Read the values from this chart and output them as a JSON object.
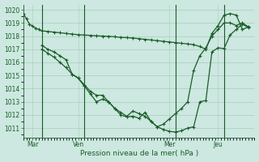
{
  "background_color": "#cce8e0",
  "grid_color": "#aaccbc",
  "line_color": "#1a5c28",
  "title": "Pression niveau de la mer( hPa )",
  "ylim": [
    1010.3,
    1020.4
  ],
  "yticks": [
    1011,
    1012,
    1013,
    1014,
    1015,
    1016,
    1017,
    1018,
    1019,
    1020
  ],
  "xlim": [
    0,
    38
  ],
  "xtick_labels": [
    "Mar",
    "Ven",
    "Mer",
    "Jeu"
  ],
  "xtick_positions": [
    1.5,
    9,
    24,
    32
  ],
  "vline_positions": [
    3,
    10,
    25,
    33
  ],
  "series1_x": [
    0,
    0.5,
    1,
    1.5,
    2,
    2.5,
    3,
    4,
    5,
    6,
    7,
    8,
    9,
    10,
    11,
    12,
    13,
    14,
    15,
    16,
    17,
    18,
    19,
    20,
    21,
    22,
    23,
    24,
    25,
    26,
    27,
    28,
    29,
    30,
    31,
    32,
    33,
    34,
    35,
    36,
    37
  ],
  "series1_y": [
    1019.7,
    1019.3,
    1018.9,
    1018.75,
    1018.6,
    1018.5,
    1018.4,
    1018.35,
    1018.3,
    1018.25,
    1018.2,
    1018.15,
    1018.1,
    1018.08,
    1018.05,
    1018.02,
    1018.0,
    1017.98,
    1017.95,
    1017.9,
    1017.88,
    1017.85,
    1017.8,
    1017.75,
    1017.7,
    1017.65,
    1017.6,
    1017.55,
    1017.5,
    1017.45,
    1017.4,
    1017.35,
    1017.2,
    1017.0,
    1018.2,
    1018.8,
    1019.6,
    1019.7,
    1019.6,
    1018.5,
    1018.7
  ],
  "series2_x": [
    3,
    4,
    5,
    6,
    7,
    8,
    9,
    10,
    11,
    12,
    13,
    14,
    15,
    16,
    17,
    18,
    19,
    20,
    21,
    22,
    23,
    24,
    25,
    26,
    27,
    28,
    29,
    30,
    31,
    32,
    33,
    34,
    35,
    36,
    37
  ],
  "series2_y": [
    1017.3,
    1017.0,
    1016.8,
    1016.5,
    1016.2,
    1015.1,
    1014.8,
    1014.2,
    1013.6,
    1013.0,
    1013.2,
    1013.0,
    1012.5,
    1012.2,
    1011.9,
    1012.3,
    1012.1,
    1011.9,
    1011.5,
    1011.1,
    1011.3,
    1011.7,
    1012.1,
    1012.5,
    1013.0,
    1015.4,
    1016.5,
    1017.1,
    1018.0,
    1018.5,
    1019.0,
    1019.0,
    1018.8,
    1019.0,
    1018.7
  ],
  "series3_x": [
    3,
    4,
    5,
    6,
    7,
    8,
    9,
    10,
    11,
    12,
    13,
    14,
    15,
    16,
    17,
    18,
    19,
    20,
    21,
    22,
    23,
    24,
    25,
    26,
    27,
    28,
    29,
    30,
    31,
    32,
    33,
    34,
    35,
    36,
    37
  ],
  "series3_y": [
    1017.0,
    1016.7,
    1016.4,
    1016.0,
    1015.6,
    1015.1,
    1014.8,
    1014.3,
    1013.8,
    1013.5,
    1013.5,
    1013.0,
    1012.5,
    1012.0,
    1011.85,
    1011.9,
    1011.75,
    1012.2,
    1011.5,
    1011.1,
    1010.9,
    1010.75,
    1010.7,
    1010.8,
    1011.0,
    1011.1,
    1013.0,
    1013.1,
    1016.8,
    1017.1,
    1017.05,
    1018.1,
    1018.5,
    1018.9,
    1018.65
  ]
}
